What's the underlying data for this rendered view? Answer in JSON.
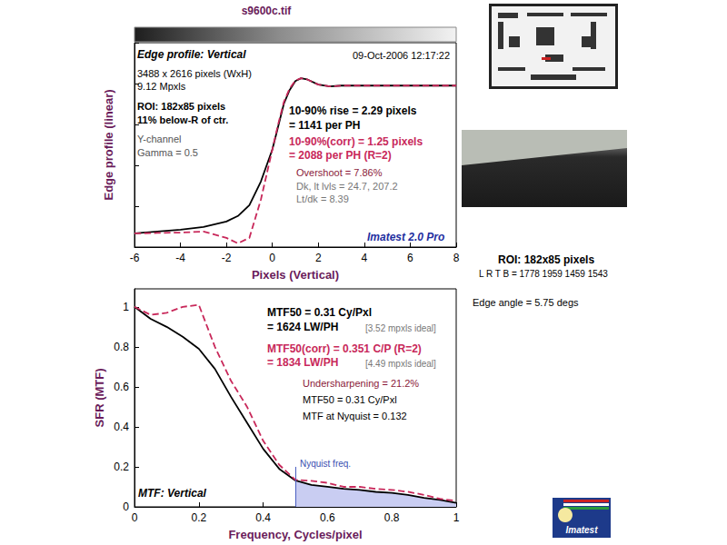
{
  "title": "s9600c.tif",
  "chart_data": [
    {
      "type": "line",
      "title": "Edge profile: Vertical",
      "x_label": "Pixels (Vertical)",
      "y_label": "Edge profile (linear)",
      "x": [
        -6,
        -5,
        -4,
        -3,
        -2,
        -1.5,
        -1,
        -0.5,
        0,
        0.25,
        0.5,
        0.75,
        1,
        1.25,
        1.5,
        2,
        2.5,
        3,
        4,
        5,
        6,
        7,
        8
      ],
      "series": [
        {
          "color": "#000000",
          "line_style": "solid",
          "values": [
            0.067,
            0.076,
            0.085,
            0.098,
            0.125,
            0.152,
            0.205,
            0.321,
            0.478,
            0.589,
            0.701,
            0.768,
            0.812,
            0.826,
            0.821,
            0.795,
            0.786,
            0.79,
            0.79,
            0.79,
            0.79,
            0.79,
            0.79
          ]
        },
        {
          "color": "#c8285a",
          "line_style": "dashed",
          "values": [
            0.067,
            0.069,
            0.071,
            0.076,
            0.045,
            0.018,
            0.045,
            0.232,
            0.478,
            0.6,
            0.71,
            0.775,
            0.815,
            0.826,
            0.821,
            0.795,
            0.786,
            0.79,
            0.79,
            0.79,
            0.79,
            0.79,
            0.79
          ]
        }
      ],
      "xlim": [
        -6,
        8
      ],
      "xticks": [
        -6,
        -4,
        -2,
        0,
        2,
        4,
        6,
        8
      ],
      "ylim": [
        0,
        1
      ],
      "yticks": [
        0,
        0.2,
        0.4,
        0.6,
        0.8,
        1
      ],
      "tick_labels": "x",
      "grid": false,
      "annotations": [
        "09-Oct-2006 12:17:22",
        "3488 x 2616 pixels (WxH)",
        "9.12 Mpxls",
        "ROI: 182x85 pixels",
        "11% below-R of ctr.",
        "Y-channel",
        "Gamma = 0.5",
        "10-90% rise = 2.29 pixels",
        "= 1141 per PH",
        "10-90%(corr) = 1.25 pixels",
        "= 2088 per PH (R=2)",
        "Overshoot = 7.86%",
        "Dk, lt lvls = 24.7, 207.2",
        "Lt/dk = 8.39",
        "Imatest 2.0 Pro"
      ]
    },
    {
      "type": "line",
      "title": "MTF: Vertical",
      "x_label": "Frequency, Cycles/pixel",
      "y_label": "SFR (MTF)",
      "x": [
        0,
        0.05,
        0.1,
        0.15,
        0.2,
        0.25,
        0.3,
        0.35,
        0.4,
        0.45,
        0.5,
        0.55,
        0.6,
        0.65,
        0.7,
        0.75,
        0.8,
        0.85,
        0.9,
        0.95,
        1
      ],
      "series": [
        {
          "color": "#000000",
          "line_style": "solid",
          "values": [
            1,
            0.94,
            0.9,
            0.85,
            0.79,
            0.69,
            0.55,
            0.42,
            0.29,
            0.19,
            0.132,
            0.11,
            0.1,
            0.09,
            0.085,
            0.075,
            0.07,
            0.06,
            0.045,
            0.035,
            0.02
          ]
        },
        {
          "color": "#c8285a",
          "line_style": "dashed",
          "values": [
            1,
            0.96,
            0.97,
            1.0,
            1.01,
            0.8,
            0.63,
            0.5,
            0.33,
            0.21,
            0.135,
            0.13,
            0.12,
            0.1,
            0.1,
            0.09,
            0.085,
            0.075,
            0.06,
            0.04,
            0.03
          ]
        }
      ],
      "markers": [
        {
          "x": 0.5,
          "y": 0.2,
          "label": "Nyquist freq."
        }
      ],
      "xlim": [
        0,
        1
      ],
      "xticks": [
        0,
        0.2,
        0.4,
        0.6,
        0.8,
        1
      ],
      "ylim": [
        0,
        1.09
      ],
      "yticks": [
        0,
        0.2,
        0.4,
        0.6,
        0.8,
        1
      ],
      "grid": false,
      "annotations": [
        "MTF50 = 0.31 Cy/Pxl",
        "= 1624 LW/PH",
        "[3.52 mpxls ideal]",
        "MTF50(corr) = 0.351 C/P (R=2)",
        "= 1834 LW/PH",
        "[4.49 mpxls ideal]",
        "Undersharpening = 21.2%",
        "MTF50 = 0.31 Cy/Pxl",
        "MTF at Nyquist = 0.132"
      ]
    }
  ],
  "side_panel": [
    "ROI: 182x85 pixels",
    "L R T B = 1778 1959 1459 1543",
    "Edge angle = 5.75 degs"
  ],
  "logo_text": "Imatest"
}
